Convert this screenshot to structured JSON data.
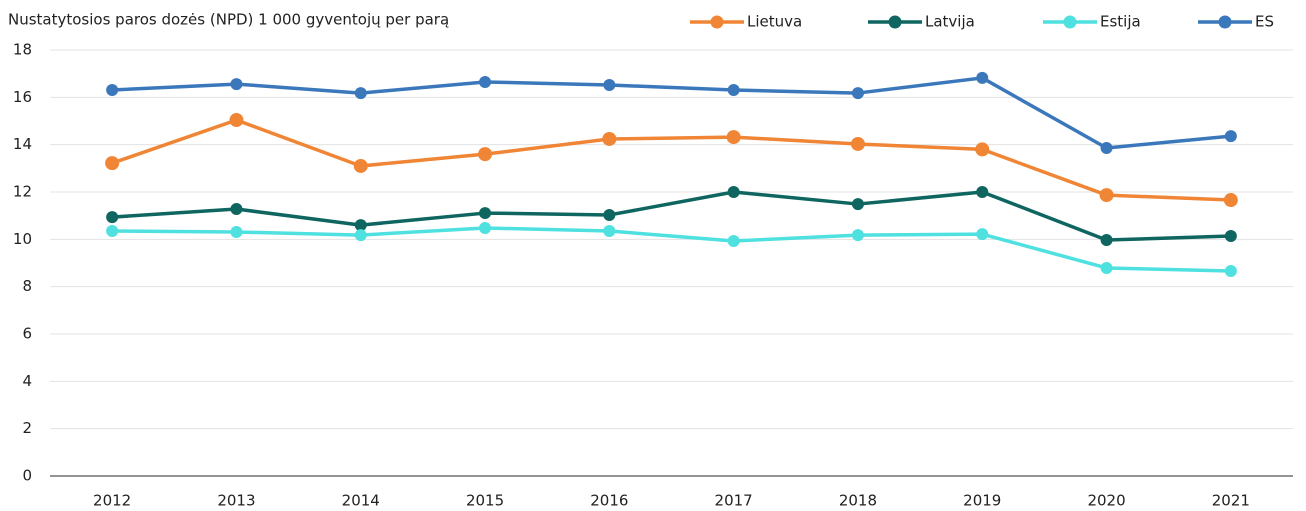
{
  "chart_data": {
    "type": "line",
    "title": "Nustatytosios paros dozės (NPD) 1 000 gyventojų per parą",
    "categories": [
      "2012",
      "2013",
      "2014",
      "2015",
      "2016",
      "2017",
      "2018",
      "2019",
      "2020",
      "2021"
    ],
    "series": [
      {
        "name": "Lietuva",
        "color": "#f08535",
        "values": [
          13.22,
          15.04,
          13.1,
          13.6,
          14.24,
          14.32,
          14.03,
          13.8,
          11.87,
          11.66
        ]
      },
      {
        "name": "Latvija",
        "color": "#0f6660",
        "values": [
          10.94,
          11.28,
          10.6,
          11.11,
          11.03,
          12.0,
          11.49,
          12.0,
          9.97,
          10.14
        ]
      },
      {
        "name": "Estija",
        "color": "#4fe0e0",
        "values": [
          10.35,
          10.31,
          10.18,
          10.48,
          10.35,
          9.93,
          10.18,
          10.22,
          8.79,
          8.66
        ]
      },
      {
        "name": "ES",
        "color": "#3b78bb",
        "values": [
          16.31,
          16.56,
          16.18,
          16.65,
          16.52,
          16.31,
          16.18,
          16.82,
          13.86,
          14.36
        ]
      }
    ],
    "ylim": [
      0,
      18
    ],
    "yticks": [
      0,
      2,
      4,
      6,
      8,
      10,
      12,
      14,
      16,
      18
    ],
    "grid": true,
    "legend": "top-right"
  }
}
